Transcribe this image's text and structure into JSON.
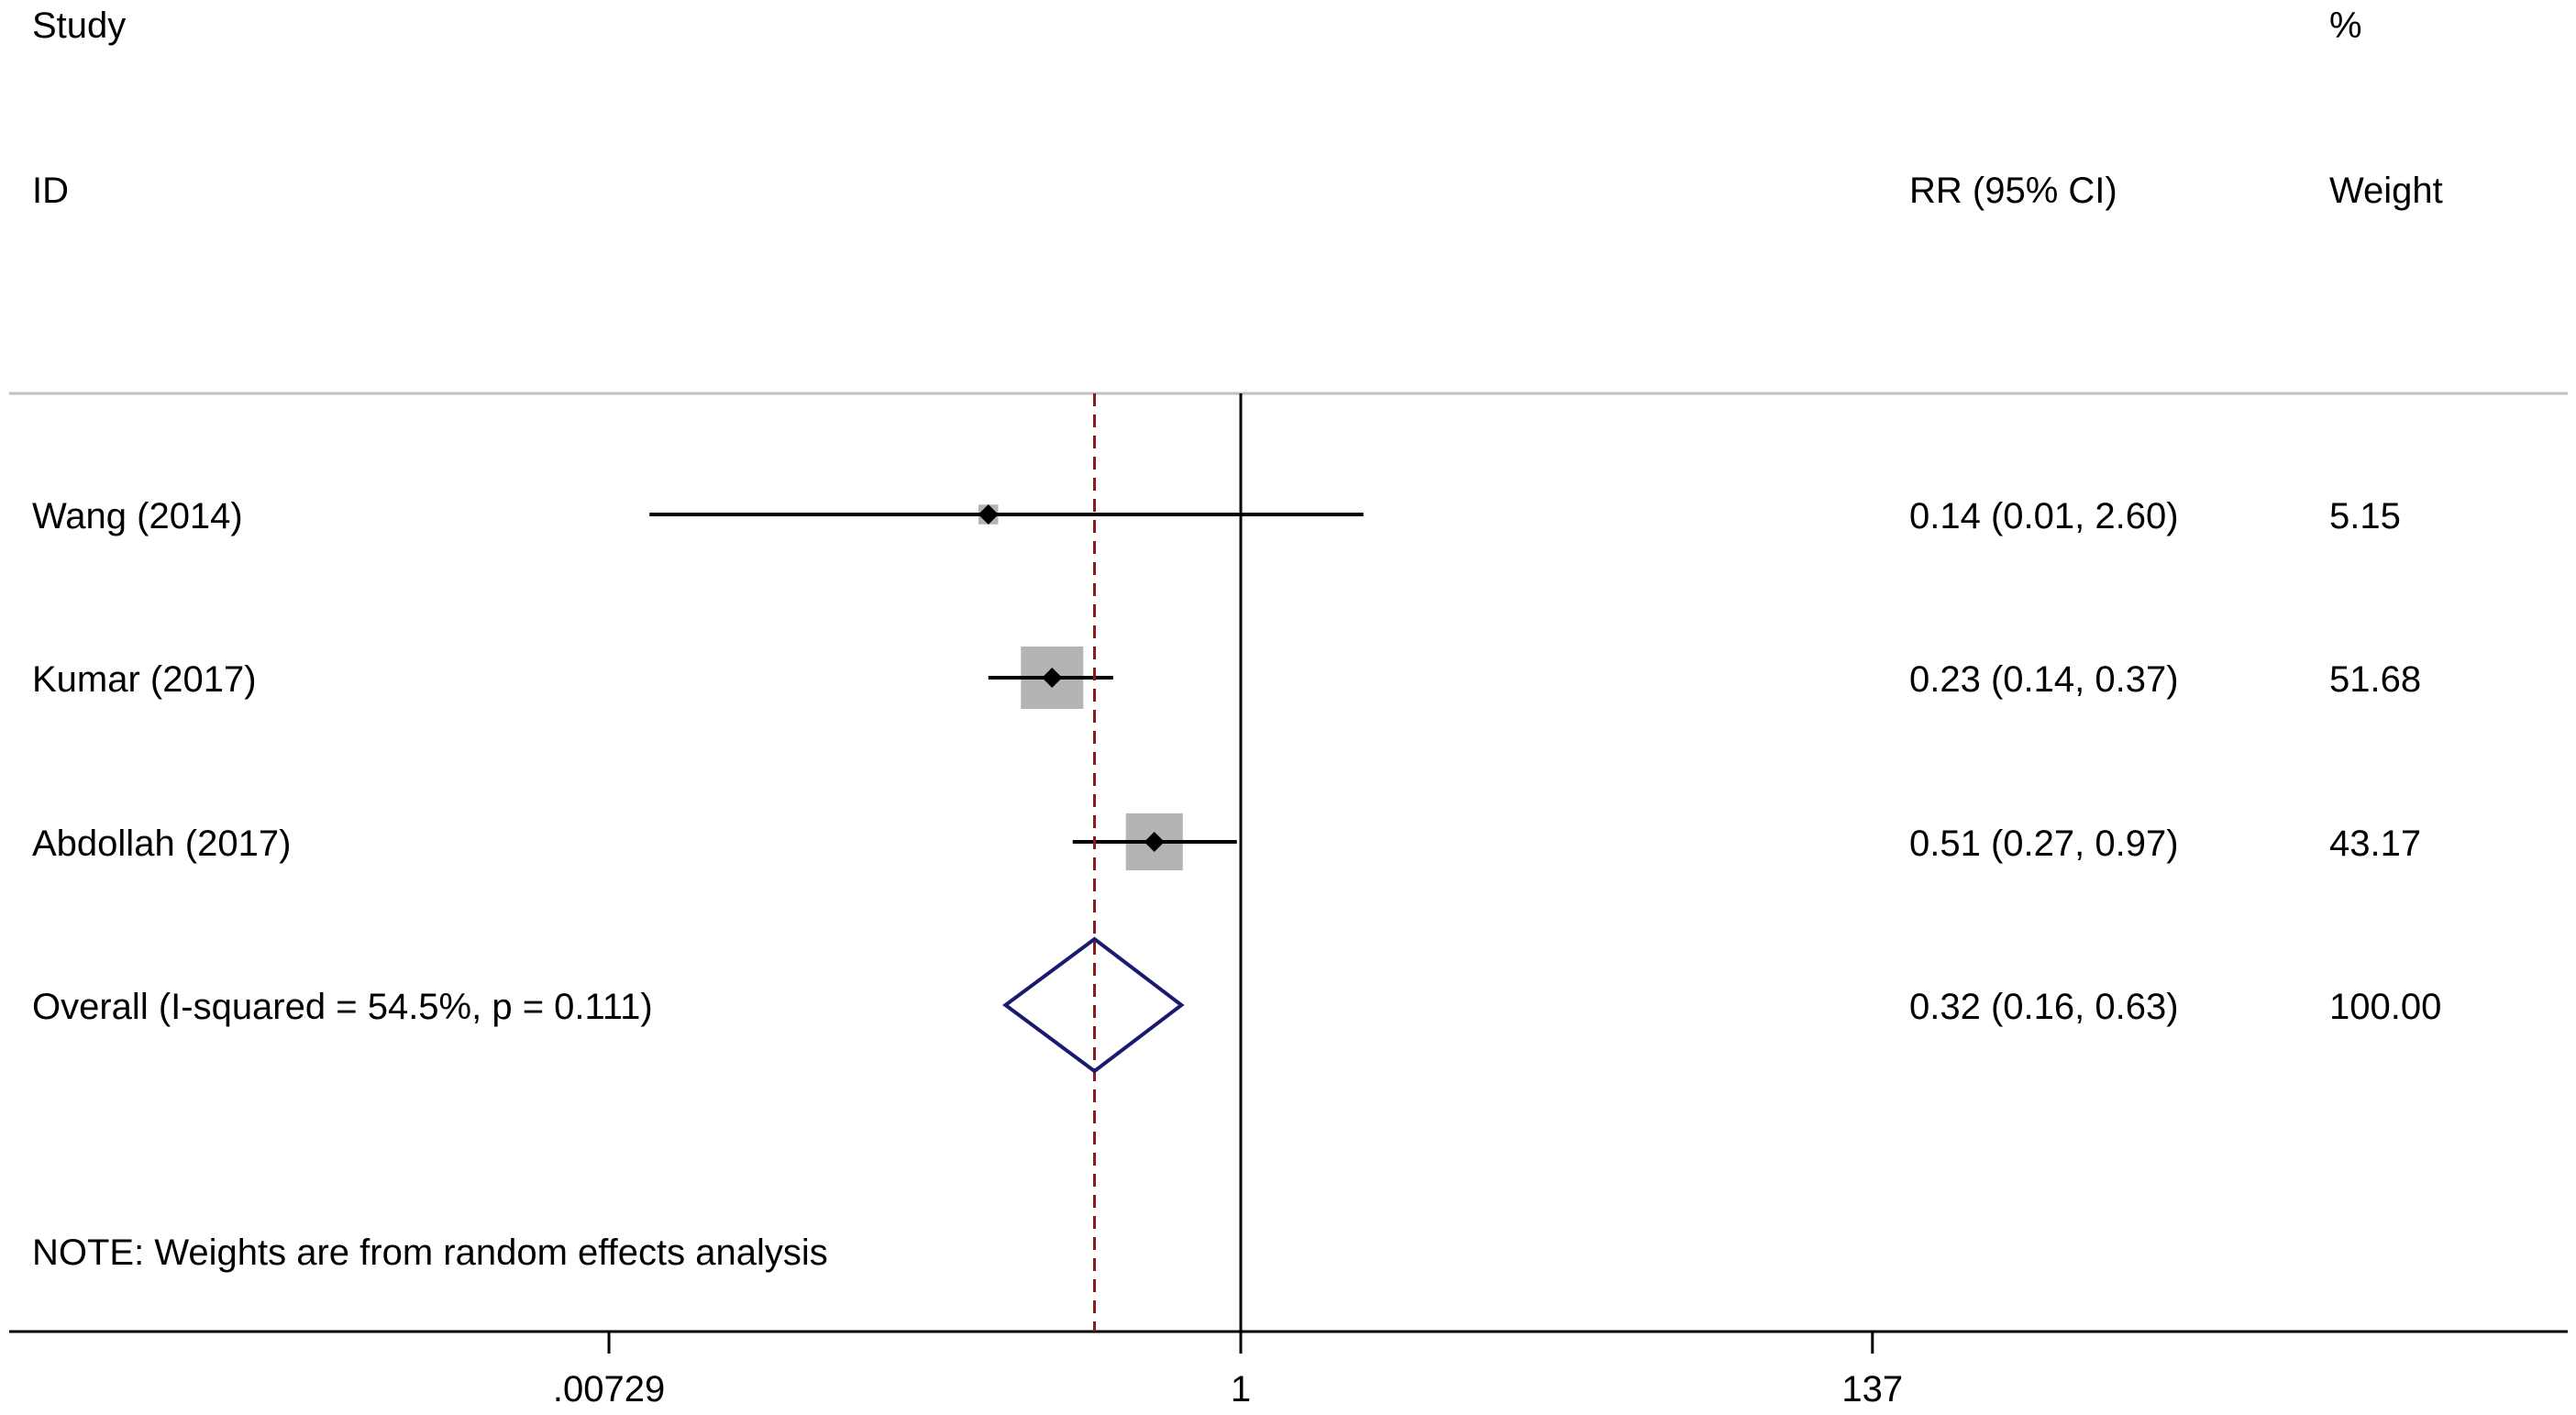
{
  "chart_data": {
    "type": "forest",
    "headers": {
      "study": "Study",
      "id": "ID",
      "effect": "RR (95% CI)",
      "weight_pct": "%",
      "weight": "Weight"
    },
    "studies": [
      {
        "label": "Wang (2014)",
        "rr": 0.14,
        "lower": 0.01,
        "upper": 2.6,
        "ci_text": "0.14 (0.01, 2.60)",
        "weight": 5.15,
        "weight_text": "5.15"
      },
      {
        "label": "Kumar (2017)",
        "rr": 0.23,
        "lower": 0.14,
        "upper": 0.37,
        "ci_text": "0.23 (0.14, 0.37)",
        "weight": 51.68,
        "weight_text": "51.68"
      },
      {
        "label": "Abdollah (2017)",
        "rr": 0.51,
        "lower": 0.27,
        "upper": 0.97,
        "ci_text": "0.51 (0.27, 0.97)",
        "weight": 43.17,
        "weight_text": "43.17"
      }
    ],
    "overall": {
      "label": "Overall  (I-squared = 54.5%, p = 0.111)",
      "rr": 0.32,
      "lower": 0.16,
      "upper": 0.63,
      "ci_text": "0.32 (0.16, 0.63)",
      "weight_text": "100.00"
    },
    "note": "NOTE: Weights are from random effects analysis",
    "x_scale": "log",
    "x_ticks": [
      0.00729,
      1,
      137
    ],
    "x_tick_labels": [
      ".00729",
      "1",
      "137"
    ],
    "null_value": 1,
    "colors": {
      "ci_line": "#000000",
      "weight_box": "#b4b4b4",
      "diamond": "#1a1a6e",
      "overall_line": "#8b1a1a",
      "null_line": "#000000",
      "separator": "#c0c0c0"
    }
  }
}
